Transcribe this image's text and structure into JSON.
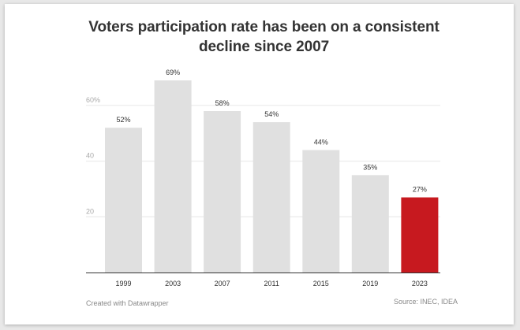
{
  "title": "Voters participation rate has been on a consistent\ndecline since 2007",
  "footer": {
    "credit": "Created with Datawrapper",
    "source": "Source: INEC, IDEA"
  },
  "colors": {
    "bar": "#e0e0e0",
    "highlight": "#c7191f",
    "gridline": "#e6e6e6",
    "axis": "#333333",
    "label": "#333333",
    "tick": "#aaaaaa"
  },
  "chart_data": {
    "type": "bar",
    "title": "Voters participation rate has been on a consistent decline since 2007",
    "categories": [
      "1999",
      "2003",
      "2007",
      "2011",
      "2015",
      "2019",
      "2023"
    ],
    "values": [
      52,
      69,
      58,
      54,
      44,
      35,
      27
    ],
    "value_labels": [
      "52%",
      "69%",
      "58%",
      "54%",
      "44%",
      "35%",
      "27%"
    ],
    "highlight_category": "2023",
    "ylim": [
      0,
      70
    ],
    "yticks": [
      {
        "value": 20,
        "label": "20"
      },
      {
        "value": 40,
        "label": "40"
      },
      {
        "value": 60,
        "label": "60%"
      }
    ],
    "grid": true,
    "xlabel": "",
    "ylabel": ""
  }
}
